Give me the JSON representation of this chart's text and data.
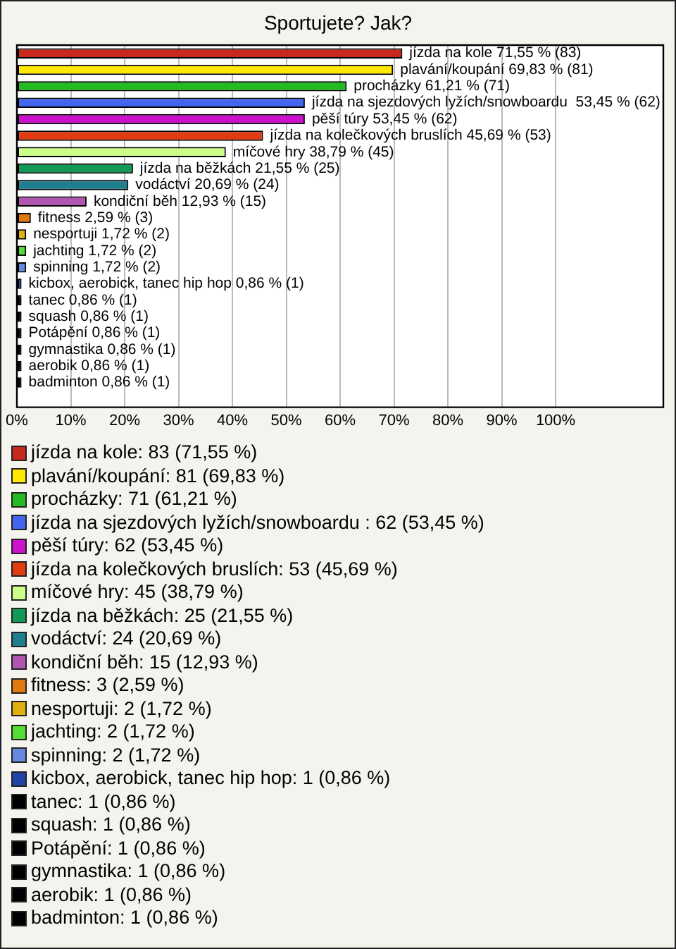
{
  "chart_data": {
    "type": "bar",
    "title": "Sportujete? Jak?",
    "orientation": "horizontal",
    "stacked": true,
    "grid": "x",
    "legend": "bottom",
    "categories": [
      null,
      null,
      null,
      null,
      null,
      null,
      null,
      null,
      null,
      null,
      null,
      null,
      null,
      null,
      null,
      null,
      null,
      null,
      null,
      null,
      null,
      null
    ],
    "xlim": [
      0,
      120
    ],
    "xticks": [
      {
        "value": 0,
        "label": "0%"
      },
      {
        "value": 10,
        "label": "10%"
      },
      {
        "value": 20,
        "label": "20%"
      },
      {
        "value": 30,
        "label": "30%"
      },
      {
        "value": 40,
        "label": "40%"
      },
      {
        "value": 50,
        "label": "50%"
      },
      {
        "value": 60,
        "label": "60%"
      },
      {
        "value": 70,
        "label": "70%"
      },
      {
        "value": 80,
        "label": "80%"
      },
      {
        "value": 90,
        "label": "90%"
      },
      {
        "value": 100,
        "label": "100%"
      }
    ],
    "series": [
      {
        "name": "jízda na kole: 83 (71,55 %)",
        "color": "#c8281e",
        "values": [
          71.55,
          null,
          null,
          null,
          null,
          null,
          null,
          null,
          null,
          null,
          null,
          null,
          null,
          null,
          null,
          null,
          null,
          null,
          null,
          null,
          null,
          null
        ],
        "value_labels": [
          "jízda na kole 71,55 % (83)",
          null,
          null,
          null,
          null,
          null,
          null,
          null,
          null,
          null,
          null,
          null,
          null,
          null,
          null,
          null,
          null,
          null,
          null,
          null,
          null,
          null
        ]
      },
      {
        "name": "plavání/koupání: 81 (69,83 %)",
        "color": "#ffe800",
        "values": [
          null,
          69.83,
          null,
          null,
          null,
          null,
          null,
          null,
          null,
          null,
          null,
          null,
          null,
          null,
          null,
          null,
          null,
          null,
          null,
          null,
          null,
          null
        ],
        "value_labels": [
          null,
          "plavání/koupání 69,83 % (81)",
          null,
          null,
          null,
          null,
          null,
          null,
          null,
          null,
          null,
          null,
          null,
          null,
          null,
          null,
          null,
          null,
          null,
          null,
          null,
          null
        ]
      },
      {
        "name": "procházky: 71 (61,21 %)",
        "color": "#22bb22",
        "values": [
          null,
          null,
          61.21,
          null,
          null,
          null,
          null,
          null,
          null,
          null,
          null,
          null,
          null,
          null,
          null,
          null,
          null,
          null,
          null,
          null,
          null,
          null
        ],
        "value_labels": [
          null,
          null,
          "procházky 61,21 % (71)",
          null,
          null,
          null,
          null,
          null,
          null,
          null,
          null,
          null,
          null,
          null,
          null,
          null,
          null,
          null,
          null,
          null,
          null,
          null
        ]
      },
      {
        "name": "jízda na sjezdových lyžích/snowboardu : 62 (53,45 %)",
        "color": "#4466ee",
        "values": [
          null,
          null,
          null,
          53.45,
          null,
          null,
          null,
          null,
          null,
          null,
          null,
          null,
          null,
          null,
          null,
          null,
          null,
          null,
          null,
          null,
          null,
          null
        ],
        "value_labels": [
          null,
          null,
          null,
          "jízda na sjezdových lyžích/snowboardu  53,45 % (62)",
          null,
          null,
          null,
          null,
          null,
          null,
          null,
          null,
          null,
          null,
          null,
          null,
          null,
          null,
          null,
          null,
          null,
          null
        ]
      },
      {
        "name": "pěší túry: 62 (53,45 %)",
        "color": "#cc11cc",
        "values": [
          null,
          null,
          null,
          null,
          53.45,
          null,
          null,
          null,
          null,
          null,
          null,
          null,
          null,
          null,
          null,
          null,
          null,
          null,
          null,
          null,
          null,
          null
        ],
        "value_labels": [
          null,
          null,
          null,
          null,
          "pěší túry 53,45 % (62)",
          null,
          null,
          null,
          null,
          null,
          null,
          null,
          null,
          null,
          null,
          null,
          null,
          null,
          null,
          null,
          null,
          null
        ]
      },
      {
        "name": "jízda na kolečkových bruslích: 53 (45,69 %)",
        "color": "#e03c10",
        "values": [
          null,
          null,
          null,
          null,
          null,
          45.69,
          null,
          null,
          null,
          null,
          null,
          null,
          null,
          null,
          null,
          null,
          null,
          null,
          null,
          null,
          null,
          null
        ],
        "value_labels": [
          null,
          null,
          null,
          null,
          null,
          "jízda na kolečkových bruslích 45,69 % (53)",
          null,
          null,
          null,
          null,
          null,
          null,
          null,
          null,
          null,
          null,
          null,
          null,
          null,
          null,
          null,
          null
        ]
      },
      {
        "name": "míčové hry: 45 (38,79 %)",
        "color": "#ccff88",
        "values": [
          null,
          null,
          null,
          null,
          null,
          null,
          38.79,
          null,
          null,
          null,
          null,
          null,
          null,
          null,
          null,
          null,
          null,
          null,
          null,
          null,
          null,
          null
        ],
        "value_labels": [
          null,
          null,
          null,
          null,
          null,
          null,
          "míčové hry 38,79 % (45)",
          null,
          null,
          null,
          null,
          null,
          null,
          null,
          null,
          null,
          null,
          null,
          null,
          null,
          null,
          null
        ]
      },
      {
        "name": "jízda na běžkách: 25 (21,55 %)",
        "color": "#119955",
        "values": [
          null,
          null,
          null,
          null,
          null,
          null,
          null,
          21.55,
          null,
          null,
          null,
          null,
          null,
          null,
          null,
          null,
          null,
          null,
          null,
          null,
          null,
          null
        ],
        "value_labels": [
          null,
          null,
          null,
          null,
          null,
          null,
          null,
          "jízda na běžkách 21,55 % (25)",
          null,
          null,
          null,
          null,
          null,
          null,
          null,
          null,
          null,
          null,
          null,
          null,
          null,
          null
        ]
      },
      {
        "name": "vodáctví: 24 (20,69 %)",
        "color": "#1f7f8f",
        "values": [
          null,
          null,
          null,
          null,
          null,
          null,
          null,
          null,
          20.69,
          null,
          null,
          null,
          null,
          null,
          null,
          null,
          null,
          null,
          null,
          null,
          null,
          null
        ],
        "value_labels": [
          null,
          null,
          null,
          null,
          null,
          null,
          null,
          null,
          "vodáctví 20,69 % (24)",
          null,
          null,
          null,
          null,
          null,
          null,
          null,
          null,
          null,
          null,
          null,
          null,
          null
        ]
      },
      {
        "name": "kondiční běh: 15 (12,93 %)",
        "color": "#b055b0",
        "values": [
          null,
          null,
          null,
          null,
          null,
          null,
          null,
          null,
          null,
          12.93,
          null,
          null,
          null,
          null,
          null,
          null,
          null,
          null,
          null,
          null,
          null,
          null
        ],
        "value_labels": [
          null,
          null,
          null,
          null,
          null,
          null,
          null,
          null,
          null,
          "kondiční běh 12,93 % (15)",
          null,
          null,
          null,
          null,
          null,
          null,
          null,
          null,
          null,
          null,
          null,
          null
        ]
      },
      {
        "name": "fitness: 3 (2,59 %)",
        "color": "#e07810",
        "values": [
          null,
          null,
          null,
          null,
          null,
          null,
          null,
          null,
          null,
          null,
          2.59,
          null,
          null,
          null,
          null,
          null,
          null,
          null,
          null,
          null,
          null,
          null
        ],
        "value_labels": [
          null,
          null,
          null,
          null,
          null,
          null,
          null,
          null,
          null,
          null,
          "fitness 2,59 % (3)",
          null,
          null,
          null,
          null,
          null,
          null,
          null,
          null,
          null,
          null,
          null
        ]
      },
      {
        "name": "nesportuji: 2 (1,72 %)",
        "color": "#e0b010",
        "values": [
          null,
          null,
          null,
          null,
          null,
          null,
          null,
          null,
          null,
          null,
          null,
          1.72,
          null,
          null,
          null,
          null,
          null,
          null,
          null,
          null,
          null,
          null
        ],
        "value_labels": [
          null,
          null,
          null,
          null,
          null,
          null,
          null,
          null,
          null,
          null,
          null,
          "nesportuji 1,72 % (2)",
          null,
          null,
          null,
          null,
          null,
          null,
          null,
          null,
          null,
          null
        ]
      },
      {
        "name": "jachting: 2 (1,72 %)",
        "color": "#55dd33",
        "values": [
          null,
          null,
          null,
          null,
          null,
          null,
          null,
          null,
          null,
          null,
          null,
          null,
          1.72,
          null,
          null,
          null,
          null,
          null,
          null,
          null,
          null,
          null
        ],
        "value_labels": [
          null,
          null,
          null,
          null,
          null,
          null,
          null,
          null,
          null,
          null,
          null,
          null,
          "jachting 1,72 % (2)",
          null,
          null,
          null,
          null,
          null,
          null,
          null,
          null,
          null
        ]
      },
      {
        "name": "spinning: 2 (1,72 %)",
        "color": "#6688dd",
        "values": [
          null,
          null,
          null,
          null,
          null,
          null,
          null,
          null,
          null,
          null,
          null,
          null,
          null,
          1.72,
          null,
          null,
          null,
          null,
          null,
          null,
          null,
          null
        ],
        "value_labels": [
          null,
          null,
          null,
          null,
          null,
          null,
          null,
          null,
          null,
          null,
          null,
          null,
          null,
          "spinning 1,72 % (2)",
          null,
          null,
          null,
          null,
          null,
          null,
          null,
          null
        ]
      },
      {
        "name": "kicbox, aerobick, tanec hip hop: 1 (0,86 %)",
        "color": "#2244aa",
        "values": [
          null,
          null,
          null,
          null,
          null,
          null,
          null,
          null,
          null,
          null,
          null,
          null,
          null,
          null,
          0.86,
          null,
          null,
          null,
          null,
          null,
          null,
          null
        ],
        "value_labels": [
          null,
          null,
          null,
          null,
          null,
          null,
          null,
          null,
          null,
          null,
          null,
          null,
          null,
          null,
          "kicbox, aerobick, tanec hip hop 0,86 % (1)",
          null,
          null,
          null,
          null,
          null,
          null,
          null
        ]
      },
      {
        "name": "tanec: 1 (0,86 %)",
        "color": "#000000",
        "values": [
          null,
          null,
          null,
          null,
          null,
          null,
          null,
          null,
          null,
          null,
          null,
          null,
          null,
          null,
          null,
          0.86,
          null,
          null,
          null,
          null,
          null,
          null
        ],
        "value_labels": [
          null,
          null,
          null,
          null,
          null,
          null,
          null,
          null,
          null,
          null,
          null,
          null,
          null,
          null,
          null,
          "tanec 0,86 % (1)",
          null,
          null,
          null,
          null,
          null,
          null
        ]
      },
      {
        "name": "squash: 1 (0,86 %)",
        "color": "#000000",
        "values": [
          null,
          null,
          null,
          null,
          null,
          null,
          null,
          null,
          null,
          null,
          null,
          null,
          null,
          null,
          null,
          null,
          0.86,
          null,
          null,
          null,
          null,
          null
        ],
        "value_labels": [
          null,
          null,
          null,
          null,
          null,
          null,
          null,
          null,
          null,
          null,
          null,
          null,
          null,
          null,
          null,
          null,
          "squash 0,86 % (1)",
          null,
          null,
          null,
          null,
          null
        ]
      },
      {
        "name": "Potápění: 1 (0,86 %)",
        "color": "#000000",
        "values": [
          null,
          null,
          null,
          null,
          null,
          null,
          null,
          null,
          null,
          null,
          null,
          null,
          null,
          null,
          null,
          null,
          null,
          0.86,
          null,
          null,
          null,
          null
        ],
        "value_labels": [
          null,
          null,
          null,
          null,
          null,
          null,
          null,
          null,
          null,
          null,
          null,
          null,
          null,
          null,
          null,
          null,
          null,
          "Potápění 0,86 % (1)",
          null,
          null,
          null,
          null
        ]
      },
      {
        "name": "gymnastika: 1 (0,86 %)",
        "color": "#000000",
        "values": [
          null,
          null,
          null,
          null,
          null,
          null,
          null,
          null,
          null,
          null,
          null,
          null,
          null,
          null,
          null,
          null,
          null,
          null,
          0.86,
          null,
          null,
          null
        ],
        "value_labels": [
          null,
          null,
          null,
          null,
          null,
          null,
          null,
          null,
          null,
          null,
          null,
          null,
          null,
          null,
          null,
          null,
          null,
          null,
          "gymnastika 0,86 % (1)",
          null,
          null,
          null
        ]
      },
      {
        "name": "aerobik: 1 (0,86 %)",
        "color": "#000000",
        "values": [
          null,
          null,
          null,
          null,
          null,
          null,
          null,
          null,
          null,
          null,
          null,
          null,
          null,
          null,
          null,
          null,
          null,
          null,
          null,
          0.86,
          null,
          null
        ],
        "value_labels": [
          null,
          null,
          null,
          null,
          null,
          null,
          null,
          null,
          null,
          null,
          null,
          null,
          null,
          null,
          null,
          null,
          null,
          null,
          null,
          "aerobik 0,86 % (1)",
          null,
          null
        ]
      },
      {
        "name": "badminton: 1 (0,86 %)",
        "color": "#000000",
        "values": [
          null,
          null,
          null,
          null,
          null,
          null,
          null,
          null,
          null,
          null,
          null,
          null,
          null,
          null,
          null,
          null,
          null,
          null,
          null,
          null,
          0.86,
          null
        ],
        "value_labels": [
          null,
          null,
          null,
          null,
          null,
          null,
          null,
          null,
          null,
          null,
          null,
          null,
          null,
          null,
          null,
          null,
          null,
          null,
          null,
          null,
          "badminton 0,86 % (1)",
          null
        ]
      }
    ]
  }
}
